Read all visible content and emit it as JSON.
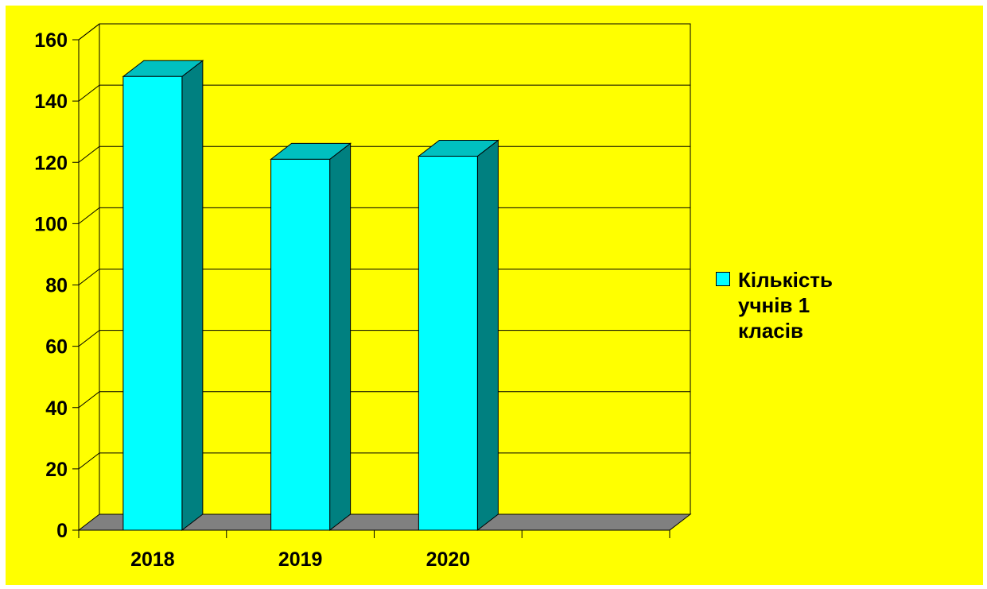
{
  "chart_data": {
    "type": "bar",
    "categories": [
      "2018",
      "2019",
      "2020"
    ],
    "series": [
      {
        "name": "Кількість учнів 1 класів",
        "values": [
          148,
          121,
          122
        ]
      }
    ],
    "ylim": [
      0,
      160
    ],
    "y_ticks": [
      "0",
      "20",
      "40",
      "60",
      "80",
      "100",
      "120",
      "140",
      "160"
    ],
    "grid": true,
    "legend_position": "right",
    "three_d": true,
    "colors": {
      "background": "#ffff00",
      "bar_front": "#00ffff",
      "bar_top": "#00c0c0",
      "bar_side": "#008080",
      "floor": "#808080"
    }
  }
}
